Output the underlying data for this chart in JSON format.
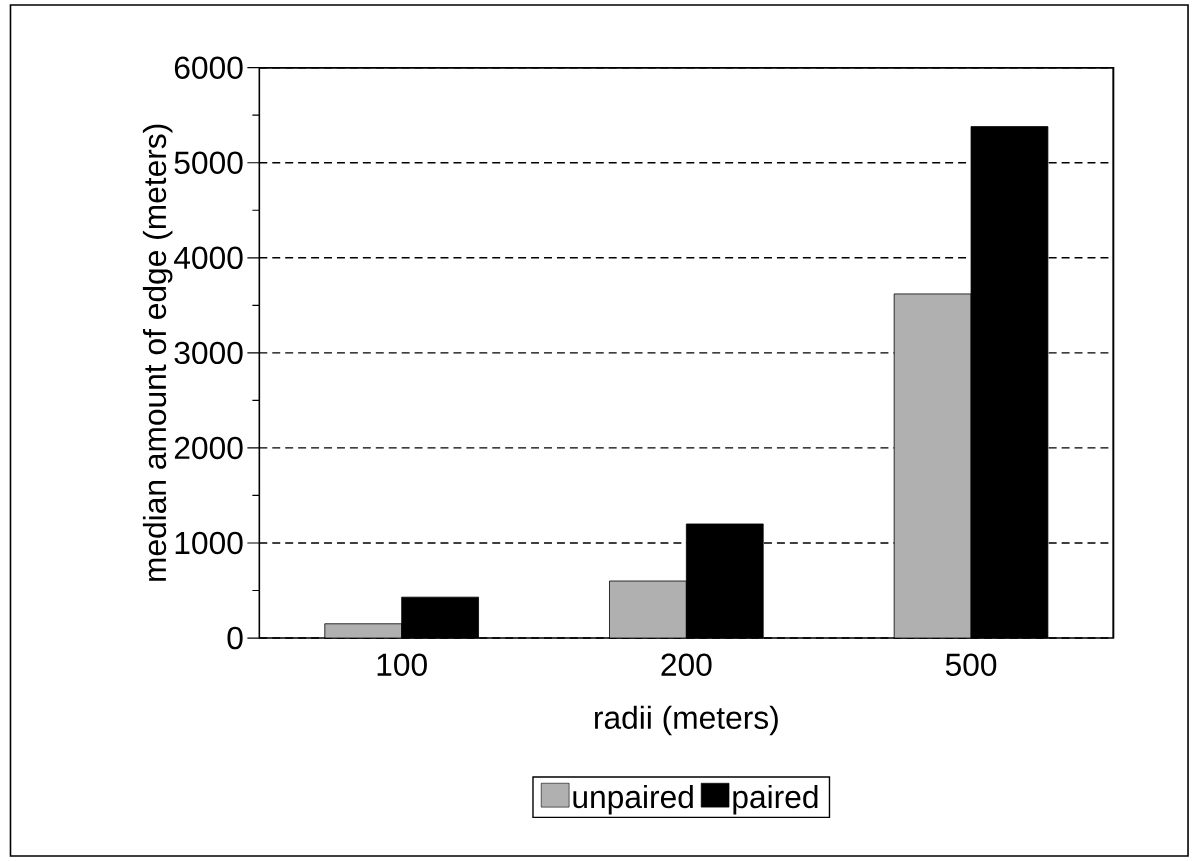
{
  "chart_data": {
    "type": "bar",
    "xlabel": "radii (meters)",
    "ylabel": "median amount of edge (meters)",
    "categories": [
      "100",
      "200",
      "500"
    ],
    "series": [
      {
        "name": "unpaired",
        "color": "#b0b0b0",
        "values": [
          150,
          600,
          3620
        ]
      },
      {
        "name": "paired",
        "color": "#000000",
        "values": [
          430,
          1200,
          5380
        ]
      }
    ],
    "ylim": [
      0,
      6000
    ],
    "yticks": [
      0,
      1000,
      2000,
      3000,
      4000,
      5000,
      6000
    ],
    "grid": "y",
    "legend": "bottom"
  }
}
